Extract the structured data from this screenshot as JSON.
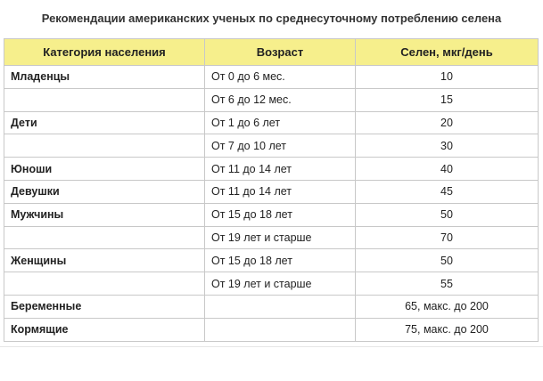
{
  "title": "Рекомендации американских ученых по среднесуточному потреблению селена",
  "table": {
    "header": [
      "Категория населения",
      "Возраст",
      "Селен, мкг/день"
    ],
    "rows": [
      [
        "Младенцы",
        "От 0 до 6 мес.",
        "10"
      ],
      [
        null,
        "От 6 до 12 мес.",
        "15"
      ],
      [
        "Дети",
        "От 1 до 6 лет",
        "20"
      ],
      [
        null,
        "От 7 до 10 лет",
        "30"
      ],
      [
        "Юноши",
        "От 11 до 14 лет",
        "40"
      ],
      [
        "Девушки",
        "От 11 до 14 лет",
        "45"
      ],
      [
        "Мужчины",
        "От 15 до 18 лет",
        "50"
      ],
      [
        null,
        "От 19 лет и старше",
        "70"
      ],
      [
        "Женщины",
        "От 15 до 18 лет",
        "50"
      ],
      [
        null,
        "От 19 лет и старше",
        "55"
      ],
      [
        "Беременные",
        null,
        "65, макс. до 200"
      ],
      [
        "Кормящие",
        null,
        "75, макс. до 200"
      ]
    ]
  }
}
